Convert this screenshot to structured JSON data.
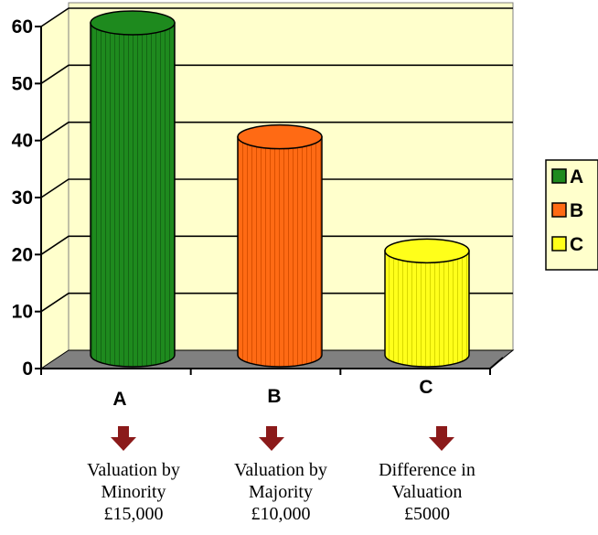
{
  "chart_data": {
    "type": "bar",
    "style": "3d-cylinder",
    "categories": [
      "A",
      "B",
      "C"
    ],
    "values": [
      60,
      40,
      20
    ],
    "colors": [
      "#1e8a1e",
      "#ff6a14",
      "#ffff1a"
    ],
    "yticks": [
      0,
      10,
      20,
      30,
      40,
      50,
      60
    ],
    "ylim": [
      0,
      60
    ],
    "grid": true,
    "plot_background": "#ffffcc",
    "floor_color": "#808080",
    "legend": {
      "position": "right",
      "entries": [
        "A",
        "B",
        "C"
      ]
    }
  },
  "captions": [
    {
      "line1": "Valuation by",
      "line2": "Minority",
      "line3": "£15,000"
    },
    {
      "line1": "Valuation by",
      "line2": "Majority",
      "line3": "£10,000"
    },
    {
      "line1": "Difference in",
      "line2": "Valuation",
      "line3": "£5000"
    }
  ],
  "arrow_color": "#8b1a1a",
  "arrow_icon": "down-arrow-icon"
}
